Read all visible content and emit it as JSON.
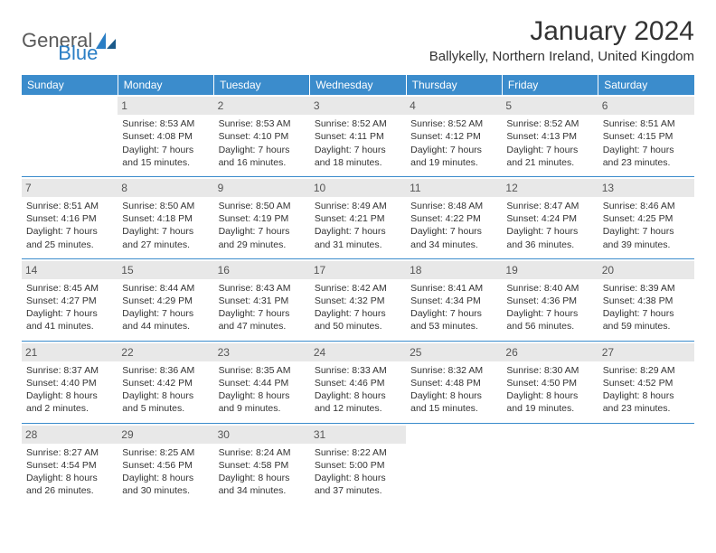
{
  "brand": {
    "general": "General",
    "blue": "Blue"
  },
  "title": "January 2024",
  "location": "Ballykelly, Northern Ireland, United Kingdom",
  "colors": {
    "header_bg": "#3b8ccc",
    "header_text": "#ffffff",
    "daynum_bg": "#e8e8e8",
    "rule": "#3b8ccc",
    "text": "#333333",
    "logo_blue": "#2a7ec5",
    "logo_gray": "#5a5a5a"
  },
  "weekdays": [
    "Sunday",
    "Monday",
    "Tuesday",
    "Wednesday",
    "Thursday",
    "Friday",
    "Saturday"
  ],
  "weeks": [
    [
      null,
      {
        "n": "1",
        "sr": "Sunrise: 8:53 AM",
        "ss": "Sunset: 4:08 PM",
        "d1": "Daylight: 7 hours",
        "d2": "and 15 minutes."
      },
      {
        "n": "2",
        "sr": "Sunrise: 8:53 AM",
        "ss": "Sunset: 4:10 PM",
        "d1": "Daylight: 7 hours",
        "d2": "and 16 minutes."
      },
      {
        "n": "3",
        "sr": "Sunrise: 8:52 AM",
        "ss": "Sunset: 4:11 PM",
        "d1": "Daylight: 7 hours",
        "d2": "and 18 minutes."
      },
      {
        "n": "4",
        "sr": "Sunrise: 8:52 AM",
        "ss": "Sunset: 4:12 PM",
        "d1": "Daylight: 7 hours",
        "d2": "and 19 minutes."
      },
      {
        "n": "5",
        "sr": "Sunrise: 8:52 AM",
        "ss": "Sunset: 4:13 PM",
        "d1": "Daylight: 7 hours",
        "d2": "and 21 minutes."
      },
      {
        "n": "6",
        "sr": "Sunrise: 8:51 AM",
        "ss": "Sunset: 4:15 PM",
        "d1": "Daylight: 7 hours",
        "d2": "and 23 minutes."
      }
    ],
    [
      {
        "n": "7",
        "sr": "Sunrise: 8:51 AM",
        "ss": "Sunset: 4:16 PM",
        "d1": "Daylight: 7 hours",
        "d2": "and 25 minutes."
      },
      {
        "n": "8",
        "sr": "Sunrise: 8:50 AM",
        "ss": "Sunset: 4:18 PM",
        "d1": "Daylight: 7 hours",
        "d2": "and 27 minutes."
      },
      {
        "n": "9",
        "sr": "Sunrise: 8:50 AM",
        "ss": "Sunset: 4:19 PM",
        "d1": "Daylight: 7 hours",
        "d2": "and 29 minutes."
      },
      {
        "n": "10",
        "sr": "Sunrise: 8:49 AM",
        "ss": "Sunset: 4:21 PM",
        "d1": "Daylight: 7 hours",
        "d2": "and 31 minutes."
      },
      {
        "n": "11",
        "sr": "Sunrise: 8:48 AM",
        "ss": "Sunset: 4:22 PM",
        "d1": "Daylight: 7 hours",
        "d2": "and 34 minutes."
      },
      {
        "n": "12",
        "sr": "Sunrise: 8:47 AM",
        "ss": "Sunset: 4:24 PM",
        "d1": "Daylight: 7 hours",
        "d2": "and 36 minutes."
      },
      {
        "n": "13",
        "sr": "Sunrise: 8:46 AM",
        "ss": "Sunset: 4:25 PM",
        "d1": "Daylight: 7 hours",
        "d2": "and 39 minutes."
      }
    ],
    [
      {
        "n": "14",
        "sr": "Sunrise: 8:45 AM",
        "ss": "Sunset: 4:27 PM",
        "d1": "Daylight: 7 hours",
        "d2": "and 41 minutes."
      },
      {
        "n": "15",
        "sr": "Sunrise: 8:44 AM",
        "ss": "Sunset: 4:29 PM",
        "d1": "Daylight: 7 hours",
        "d2": "and 44 minutes."
      },
      {
        "n": "16",
        "sr": "Sunrise: 8:43 AM",
        "ss": "Sunset: 4:31 PM",
        "d1": "Daylight: 7 hours",
        "d2": "and 47 minutes."
      },
      {
        "n": "17",
        "sr": "Sunrise: 8:42 AM",
        "ss": "Sunset: 4:32 PM",
        "d1": "Daylight: 7 hours",
        "d2": "and 50 minutes."
      },
      {
        "n": "18",
        "sr": "Sunrise: 8:41 AM",
        "ss": "Sunset: 4:34 PM",
        "d1": "Daylight: 7 hours",
        "d2": "and 53 minutes."
      },
      {
        "n": "19",
        "sr": "Sunrise: 8:40 AM",
        "ss": "Sunset: 4:36 PM",
        "d1": "Daylight: 7 hours",
        "d2": "and 56 minutes."
      },
      {
        "n": "20",
        "sr": "Sunrise: 8:39 AM",
        "ss": "Sunset: 4:38 PM",
        "d1": "Daylight: 7 hours",
        "d2": "and 59 minutes."
      }
    ],
    [
      {
        "n": "21",
        "sr": "Sunrise: 8:37 AM",
        "ss": "Sunset: 4:40 PM",
        "d1": "Daylight: 8 hours",
        "d2": "and 2 minutes."
      },
      {
        "n": "22",
        "sr": "Sunrise: 8:36 AM",
        "ss": "Sunset: 4:42 PM",
        "d1": "Daylight: 8 hours",
        "d2": "and 5 minutes."
      },
      {
        "n": "23",
        "sr": "Sunrise: 8:35 AM",
        "ss": "Sunset: 4:44 PM",
        "d1": "Daylight: 8 hours",
        "d2": "and 9 minutes."
      },
      {
        "n": "24",
        "sr": "Sunrise: 8:33 AM",
        "ss": "Sunset: 4:46 PM",
        "d1": "Daylight: 8 hours",
        "d2": "and 12 minutes."
      },
      {
        "n": "25",
        "sr": "Sunrise: 8:32 AM",
        "ss": "Sunset: 4:48 PM",
        "d1": "Daylight: 8 hours",
        "d2": "and 15 minutes."
      },
      {
        "n": "26",
        "sr": "Sunrise: 8:30 AM",
        "ss": "Sunset: 4:50 PM",
        "d1": "Daylight: 8 hours",
        "d2": "and 19 minutes."
      },
      {
        "n": "27",
        "sr": "Sunrise: 8:29 AM",
        "ss": "Sunset: 4:52 PM",
        "d1": "Daylight: 8 hours",
        "d2": "and 23 minutes."
      }
    ],
    [
      {
        "n": "28",
        "sr": "Sunrise: 8:27 AM",
        "ss": "Sunset: 4:54 PM",
        "d1": "Daylight: 8 hours",
        "d2": "and 26 minutes."
      },
      {
        "n": "29",
        "sr": "Sunrise: 8:25 AM",
        "ss": "Sunset: 4:56 PM",
        "d1": "Daylight: 8 hours",
        "d2": "and 30 minutes."
      },
      {
        "n": "30",
        "sr": "Sunrise: 8:24 AM",
        "ss": "Sunset: 4:58 PM",
        "d1": "Daylight: 8 hours",
        "d2": "and 34 minutes."
      },
      {
        "n": "31",
        "sr": "Sunrise: 8:22 AM",
        "ss": "Sunset: 5:00 PM",
        "d1": "Daylight: 8 hours",
        "d2": "and 37 minutes."
      },
      null,
      null,
      null
    ]
  ]
}
